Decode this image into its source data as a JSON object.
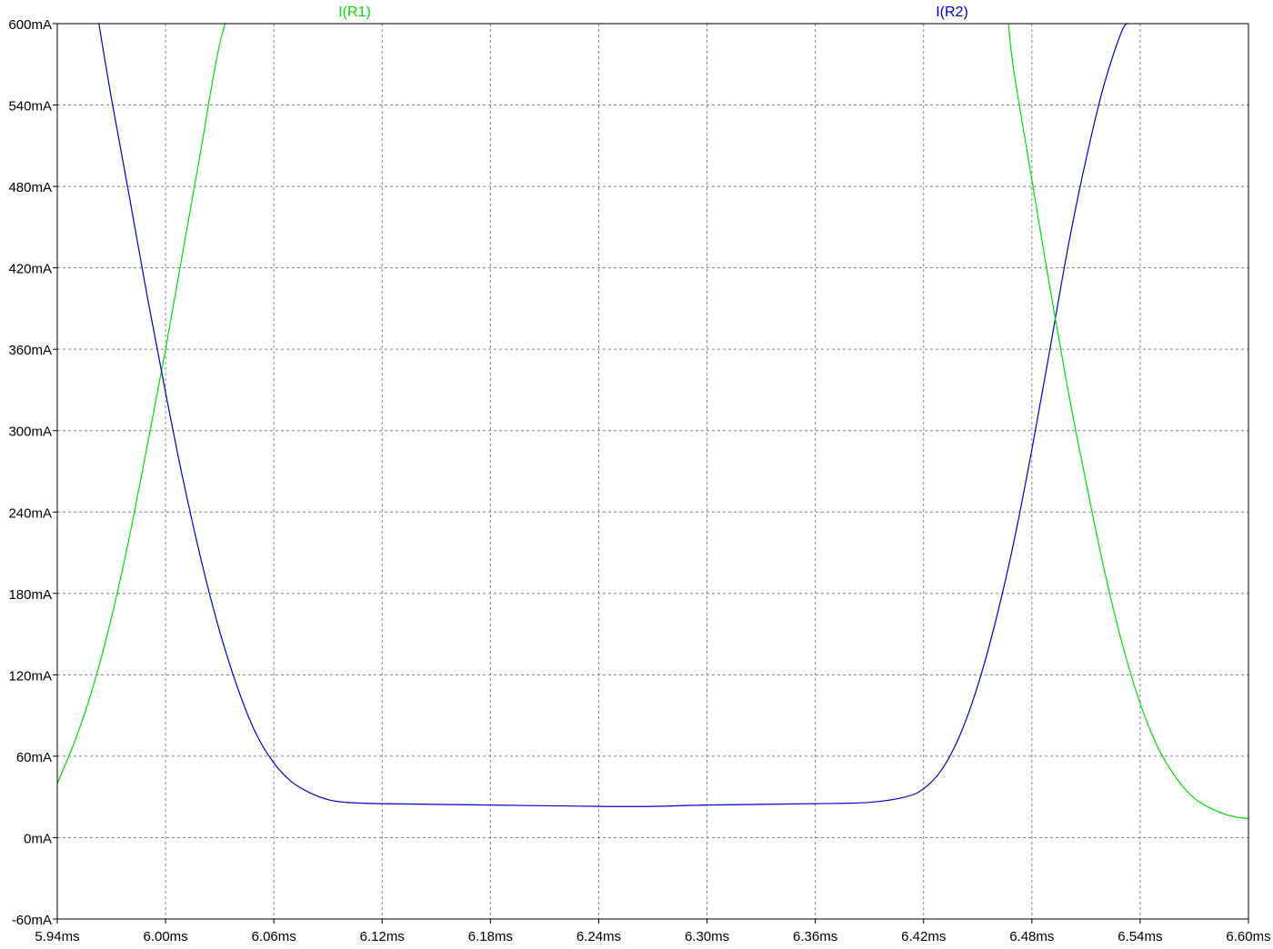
{
  "chart_data": {
    "type": "line",
    "title": "",
    "xlabel": "",
    "ylabel": "",
    "xlim": [
      5.94,
      6.6
    ],
    "ylim": [
      -60,
      600
    ],
    "grid": true,
    "background": "#ffffff",
    "grid_color": "#808080",
    "axis_color": "#000000",
    "x_ticks": [
      5.94,
      6.0,
      6.06,
      6.12,
      6.18,
      6.24,
      6.3,
      6.36,
      6.42,
      6.48,
      6.54,
      6.6
    ],
    "x_tick_labels": [
      "5.94ms",
      "6.00ms",
      "6.06ms",
      "6.12ms",
      "6.18ms",
      "6.24ms",
      "6.30ms",
      "6.36ms",
      "6.42ms",
      "6.48ms",
      "6.54ms",
      "6.60ms"
    ],
    "y_ticks": [
      600,
      540,
      480,
      420,
      360,
      300,
      240,
      180,
      120,
      60,
      0,
      -60
    ],
    "y_tick_labels": [
      "600mA",
      "540mA",
      "480mA",
      "420mA",
      "360mA",
      "300mA",
      "240mA",
      "180mA",
      "120mA",
      "60mA",
      "0mA",
      "-60mA"
    ],
    "series": [
      {
        "name": "I(R1)",
        "color": "#00dd00",
        "x": [
          5.94,
          5.95,
          5.96,
          5.97,
          5.98,
          5.99,
          6.0,
          6.01,
          6.02,
          6.025,
          6.03,
          6.033
        ],
        "y": [
          40,
          72,
          112,
          162,
          222,
          290,
          360,
          435,
          510,
          550,
          585,
          600
        ]
      },
      {
        "name": "I(R2)",
        "color": "#0000cc",
        "x": [
          5.963,
          5.97,
          5.98,
          5.99,
          6.0,
          6.01,
          6.02,
          6.03,
          6.04,
          6.05,
          6.06,
          6.07,
          6.08,
          6.09,
          6.1,
          6.12,
          6.18,
          6.24,
          6.27,
          6.3,
          6.36,
          6.39,
          6.41,
          6.42,
          6.43,
          6.44,
          6.45,
          6.46,
          6.47,
          6.48,
          6.49,
          6.5,
          6.51,
          6.52,
          6.53,
          6.534
        ],
        "y": [
          600,
          545,
          472,
          398,
          328,
          262,
          203,
          152,
          110,
          77,
          55,
          41,
          33,
          28,
          26,
          25,
          24,
          23,
          23,
          24,
          25,
          26,
          30,
          36,
          50,
          75,
          112,
          160,
          218,
          286,
          360,
          435,
          500,
          555,
          595,
          600
        ]
      },
      {
        "name": "I(R1)",
        "color": "#00dd00",
        "x": [
          6.467,
          6.47,
          6.48,
          6.49,
          6.5,
          6.51,
          6.52,
          6.53,
          6.54,
          6.55,
          6.56,
          6.57,
          6.58,
          6.59,
          6.6
        ],
        "y": [
          600,
          565,
          485,
          405,
          330,
          262,
          198,
          143,
          99,
          66,
          44,
          29,
          21,
          16,
          14
        ]
      }
    ],
    "legend": [
      {
        "name": "I(R1)",
        "color": "#00dd00"
      },
      {
        "name": "I(R2)",
        "color": "#0000cc"
      }
    ]
  }
}
